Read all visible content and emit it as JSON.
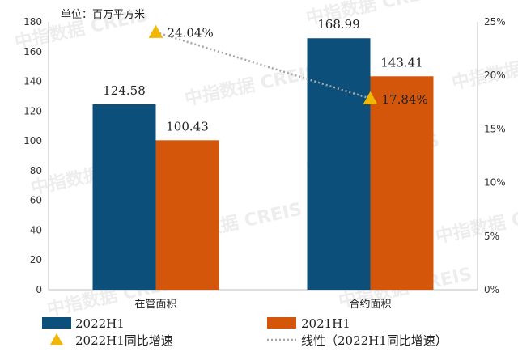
{
  "chart_data": {
    "type": "bar",
    "unit_label": "单位：百万平方米",
    "categories": [
      "在管面积",
      "合约面积"
    ],
    "series": [
      {
        "name": "2022H1",
        "values": [
          124.58,
          168.99
        ],
        "color": "#0b4f7a"
      },
      {
        "name": "2021H1",
        "values": [
          100.43,
          143.41
        ],
        "color": "#d4560b"
      }
    ],
    "line_series": {
      "name": "2022H1同比增速",
      "values": [
        24.04,
        17.84
      ],
      "labels": [
        "24.04%",
        "17.84%"
      ],
      "color": "#f2b705"
    },
    "trendline": {
      "name": "线性（2022H1同比增速）",
      "color": "#a6a6a6"
    },
    "y_left": {
      "min": 0,
      "max": 180,
      "step": 20
    },
    "y_right": {
      "min": 0,
      "max": 25,
      "step": 5,
      "suffix": "%"
    },
    "bar_labels": [
      [
        "124.58",
        "168.99"
      ],
      [
        "100.43",
        "143.41"
      ]
    ],
    "legend_position": "bottom",
    "watermark": "中指数据 CREIS"
  }
}
